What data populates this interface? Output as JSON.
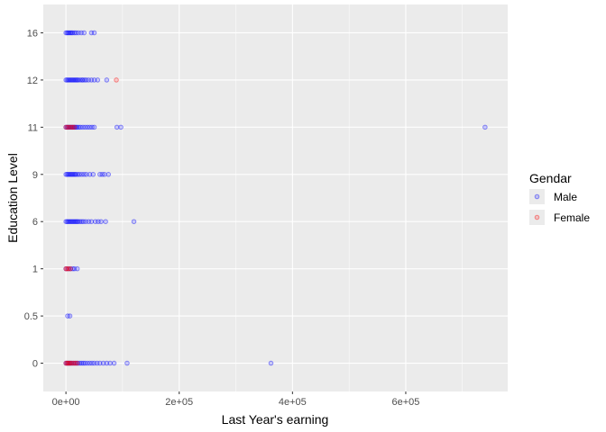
{
  "chart_data": {
    "type": "scatter",
    "title": "",
    "xlabel": "Last Year's earning",
    "ylabel": "Education Level",
    "xlim": [
      -40000,
      780000
    ],
    "x_ticks": [
      0,
      200000,
      400000,
      600000
    ],
    "x_tick_labels": [
      "0e+00",
      "2e+05",
      "4e+05",
      "6e+05"
    ],
    "y_categories": [
      "0",
      "0.5",
      "1",
      "6",
      "9",
      "11",
      "12",
      "16"
    ],
    "grid": true,
    "legend": {
      "title": "Gendar",
      "placement": "right",
      "entries": [
        {
          "name": "Male",
          "color": "#0000ff"
        },
        {
          "name": "Female",
          "color": "#ff0000"
        }
      ]
    },
    "series": [
      {
        "name": "Male",
        "color": "#0000ff",
        "points": [
          {
            "x": 0,
            "y": "16"
          },
          {
            "x": 2000,
            "y": "16"
          },
          {
            "x": 4000,
            "y": "16"
          },
          {
            "x": 6000,
            "y": "16"
          },
          {
            "x": 8000,
            "y": "16"
          },
          {
            "x": 10000,
            "y": "16"
          },
          {
            "x": 12000,
            "y": "16"
          },
          {
            "x": 15000,
            "y": "16"
          },
          {
            "x": 18000,
            "y": "16"
          },
          {
            "x": 22000,
            "y": "16"
          },
          {
            "x": 27000,
            "y": "16"
          },
          {
            "x": 32000,
            "y": "16"
          },
          {
            "x": 45000,
            "y": "16"
          },
          {
            "x": 50000,
            "y": "16"
          },
          {
            "x": 0,
            "y": "12"
          },
          {
            "x": 2000,
            "y": "12"
          },
          {
            "x": 4000,
            "y": "12"
          },
          {
            "x": 6000,
            "y": "12"
          },
          {
            "x": 8000,
            "y": "12"
          },
          {
            "x": 10000,
            "y": "12"
          },
          {
            "x": 12000,
            "y": "12"
          },
          {
            "x": 14000,
            "y": "12"
          },
          {
            "x": 16000,
            "y": "12"
          },
          {
            "x": 18000,
            "y": "12"
          },
          {
            "x": 20000,
            "y": "12"
          },
          {
            "x": 22000,
            "y": "12"
          },
          {
            "x": 25000,
            "y": "12"
          },
          {
            "x": 28000,
            "y": "12"
          },
          {
            "x": 30000,
            "y": "12"
          },
          {
            "x": 33000,
            "y": "12"
          },
          {
            "x": 36000,
            "y": "12"
          },
          {
            "x": 40000,
            "y": "12"
          },
          {
            "x": 45000,
            "y": "12"
          },
          {
            "x": 50000,
            "y": "12"
          },
          {
            "x": 56000,
            "y": "12"
          },
          {
            "x": 72000,
            "y": "12"
          },
          {
            "x": 0,
            "y": "11"
          },
          {
            "x": 2000,
            "y": "11"
          },
          {
            "x": 4000,
            "y": "11"
          },
          {
            "x": 6000,
            "y": "11"
          },
          {
            "x": 8000,
            "y": "11"
          },
          {
            "x": 10000,
            "y": "11"
          },
          {
            "x": 12000,
            "y": "11"
          },
          {
            "x": 14000,
            "y": "11"
          },
          {
            "x": 16000,
            "y": "11"
          },
          {
            "x": 18000,
            "y": "11"
          },
          {
            "x": 20000,
            "y": "11"
          },
          {
            "x": 23000,
            "y": "11"
          },
          {
            "x": 26000,
            "y": "11"
          },
          {
            "x": 30000,
            "y": "11"
          },
          {
            "x": 34000,
            "y": "11"
          },
          {
            "x": 38000,
            "y": "11"
          },
          {
            "x": 42000,
            "y": "11"
          },
          {
            "x": 46000,
            "y": "11"
          },
          {
            "x": 50000,
            "y": "11"
          },
          {
            "x": 90000,
            "y": "11"
          },
          {
            "x": 97000,
            "y": "11"
          },
          {
            "x": 740000,
            "y": "11"
          },
          {
            "x": 0,
            "y": "9"
          },
          {
            "x": 2000,
            "y": "9"
          },
          {
            "x": 4000,
            "y": "9"
          },
          {
            "x": 6000,
            "y": "9"
          },
          {
            "x": 8000,
            "y": "9"
          },
          {
            "x": 10000,
            "y": "9"
          },
          {
            "x": 12000,
            "y": "9"
          },
          {
            "x": 14000,
            "y": "9"
          },
          {
            "x": 16000,
            "y": "9"
          },
          {
            "x": 18000,
            "y": "9"
          },
          {
            "x": 21000,
            "y": "9"
          },
          {
            "x": 24000,
            "y": "9"
          },
          {
            "x": 28000,
            "y": "9"
          },
          {
            "x": 32000,
            "y": "9"
          },
          {
            "x": 36000,
            "y": "9"
          },
          {
            "x": 42000,
            "y": "9"
          },
          {
            "x": 48000,
            "y": "9"
          },
          {
            "x": 60000,
            "y": "9"
          },
          {
            "x": 64000,
            "y": "9"
          },
          {
            "x": 68000,
            "y": "9"
          },
          {
            "x": 75000,
            "y": "9"
          },
          {
            "x": 0,
            "y": "6"
          },
          {
            "x": 2000,
            "y": "6"
          },
          {
            "x": 4000,
            "y": "6"
          },
          {
            "x": 6000,
            "y": "6"
          },
          {
            "x": 8000,
            "y": "6"
          },
          {
            "x": 10000,
            "y": "6"
          },
          {
            "x": 12000,
            "y": "6"
          },
          {
            "x": 14000,
            "y": "6"
          },
          {
            "x": 16000,
            "y": "6"
          },
          {
            "x": 18000,
            "y": "6"
          },
          {
            "x": 20000,
            "y": "6"
          },
          {
            "x": 22000,
            "y": "6"
          },
          {
            "x": 25000,
            "y": "6"
          },
          {
            "x": 28000,
            "y": "6"
          },
          {
            "x": 31000,
            "y": "6"
          },
          {
            "x": 35000,
            "y": "6"
          },
          {
            "x": 40000,
            "y": "6"
          },
          {
            "x": 45000,
            "y": "6"
          },
          {
            "x": 52000,
            "y": "6"
          },
          {
            "x": 57000,
            "y": "6"
          },
          {
            "x": 62000,
            "y": "6"
          },
          {
            "x": 70000,
            "y": "6"
          },
          {
            "x": 120000,
            "y": "6"
          },
          {
            "x": 0,
            "y": "1"
          },
          {
            "x": 4000,
            "y": "1"
          },
          {
            "x": 8000,
            "y": "1"
          },
          {
            "x": 12000,
            "y": "1"
          },
          {
            "x": 15000,
            "y": "1"
          },
          {
            "x": 20000,
            "y": "1"
          },
          {
            "x": 3000,
            "y": "0.5"
          },
          {
            "x": 7000,
            "y": "0.5"
          },
          {
            "x": 0,
            "y": "0"
          },
          {
            "x": 2000,
            "y": "0"
          },
          {
            "x": 4000,
            "y": "0"
          },
          {
            "x": 6000,
            "y": "0"
          },
          {
            "x": 8000,
            "y": "0"
          },
          {
            "x": 10000,
            "y": "0"
          },
          {
            "x": 13000,
            "y": "0"
          },
          {
            "x": 16000,
            "y": "0"
          },
          {
            "x": 19000,
            "y": "0"
          },
          {
            "x": 22000,
            "y": "0"
          },
          {
            "x": 25000,
            "y": "0"
          },
          {
            "x": 28000,
            "y": "0"
          },
          {
            "x": 31000,
            "y": "0"
          },
          {
            "x": 34000,
            "y": "0"
          },
          {
            "x": 38000,
            "y": "0"
          },
          {
            "x": 42000,
            "y": "0"
          },
          {
            "x": 46000,
            "y": "0"
          },
          {
            "x": 50000,
            "y": "0"
          },
          {
            "x": 55000,
            "y": "0"
          },
          {
            "x": 60000,
            "y": "0"
          },
          {
            "x": 66000,
            "y": "0"
          },
          {
            "x": 72000,
            "y": "0"
          },
          {
            "x": 78000,
            "y": "0"
          },
          {
            "x": 85000,
            "y": "0"
          },
          {
            "x": 108000,
            "y": "0"
          },
          {
            "x": 362000,
            "y": "0"
          }
        ]
      },
      {
        "name": "Female",
        "color": "#ff0000",
        "points": [
          {
            "x": 89000,
            "y": "12"
          },
          {
            "x": 0,
            "y": "11"
          },
          {
            "x": 3000,
            "y": "11"
          },
          {
            "x": 6000,
            "y": "11"
          },
          {
            "x": 9000,
            "y": "11"
          },
          {
            "x": 12000,
            "y": "11"
          },
          {
            "x": 15000,
            "y": "11"
          },
          {
            "x": 0,
            "y": "1"
          },
          {
            "x": 2000,
            "y": "1"
          },
          {
            "x": 5000,
            "y": "1"
          },
          {
            "x": 8000,
            "y": "1"
          },
          {
            "x": 0,
            "y": "0"
          },
          {
            "x": 2000,
            "y": "0"
          },
          {
            "x": 4000,
            "y": "0"
          },
          {
            "x": 6000,
            "y": "0"
          },
          {
            "x": 8000,
            "y": "0"
          },
          {
            "x": 11000,
            "y": "0"
          },
          {
            "x": 14000,
            "y": "0"
          },
          {
            "x": 17000,
            "y": "0"
          },
          {
            "x": 20000,
            "y": "0"
          }
        ]
      }
    ]
  }
}
